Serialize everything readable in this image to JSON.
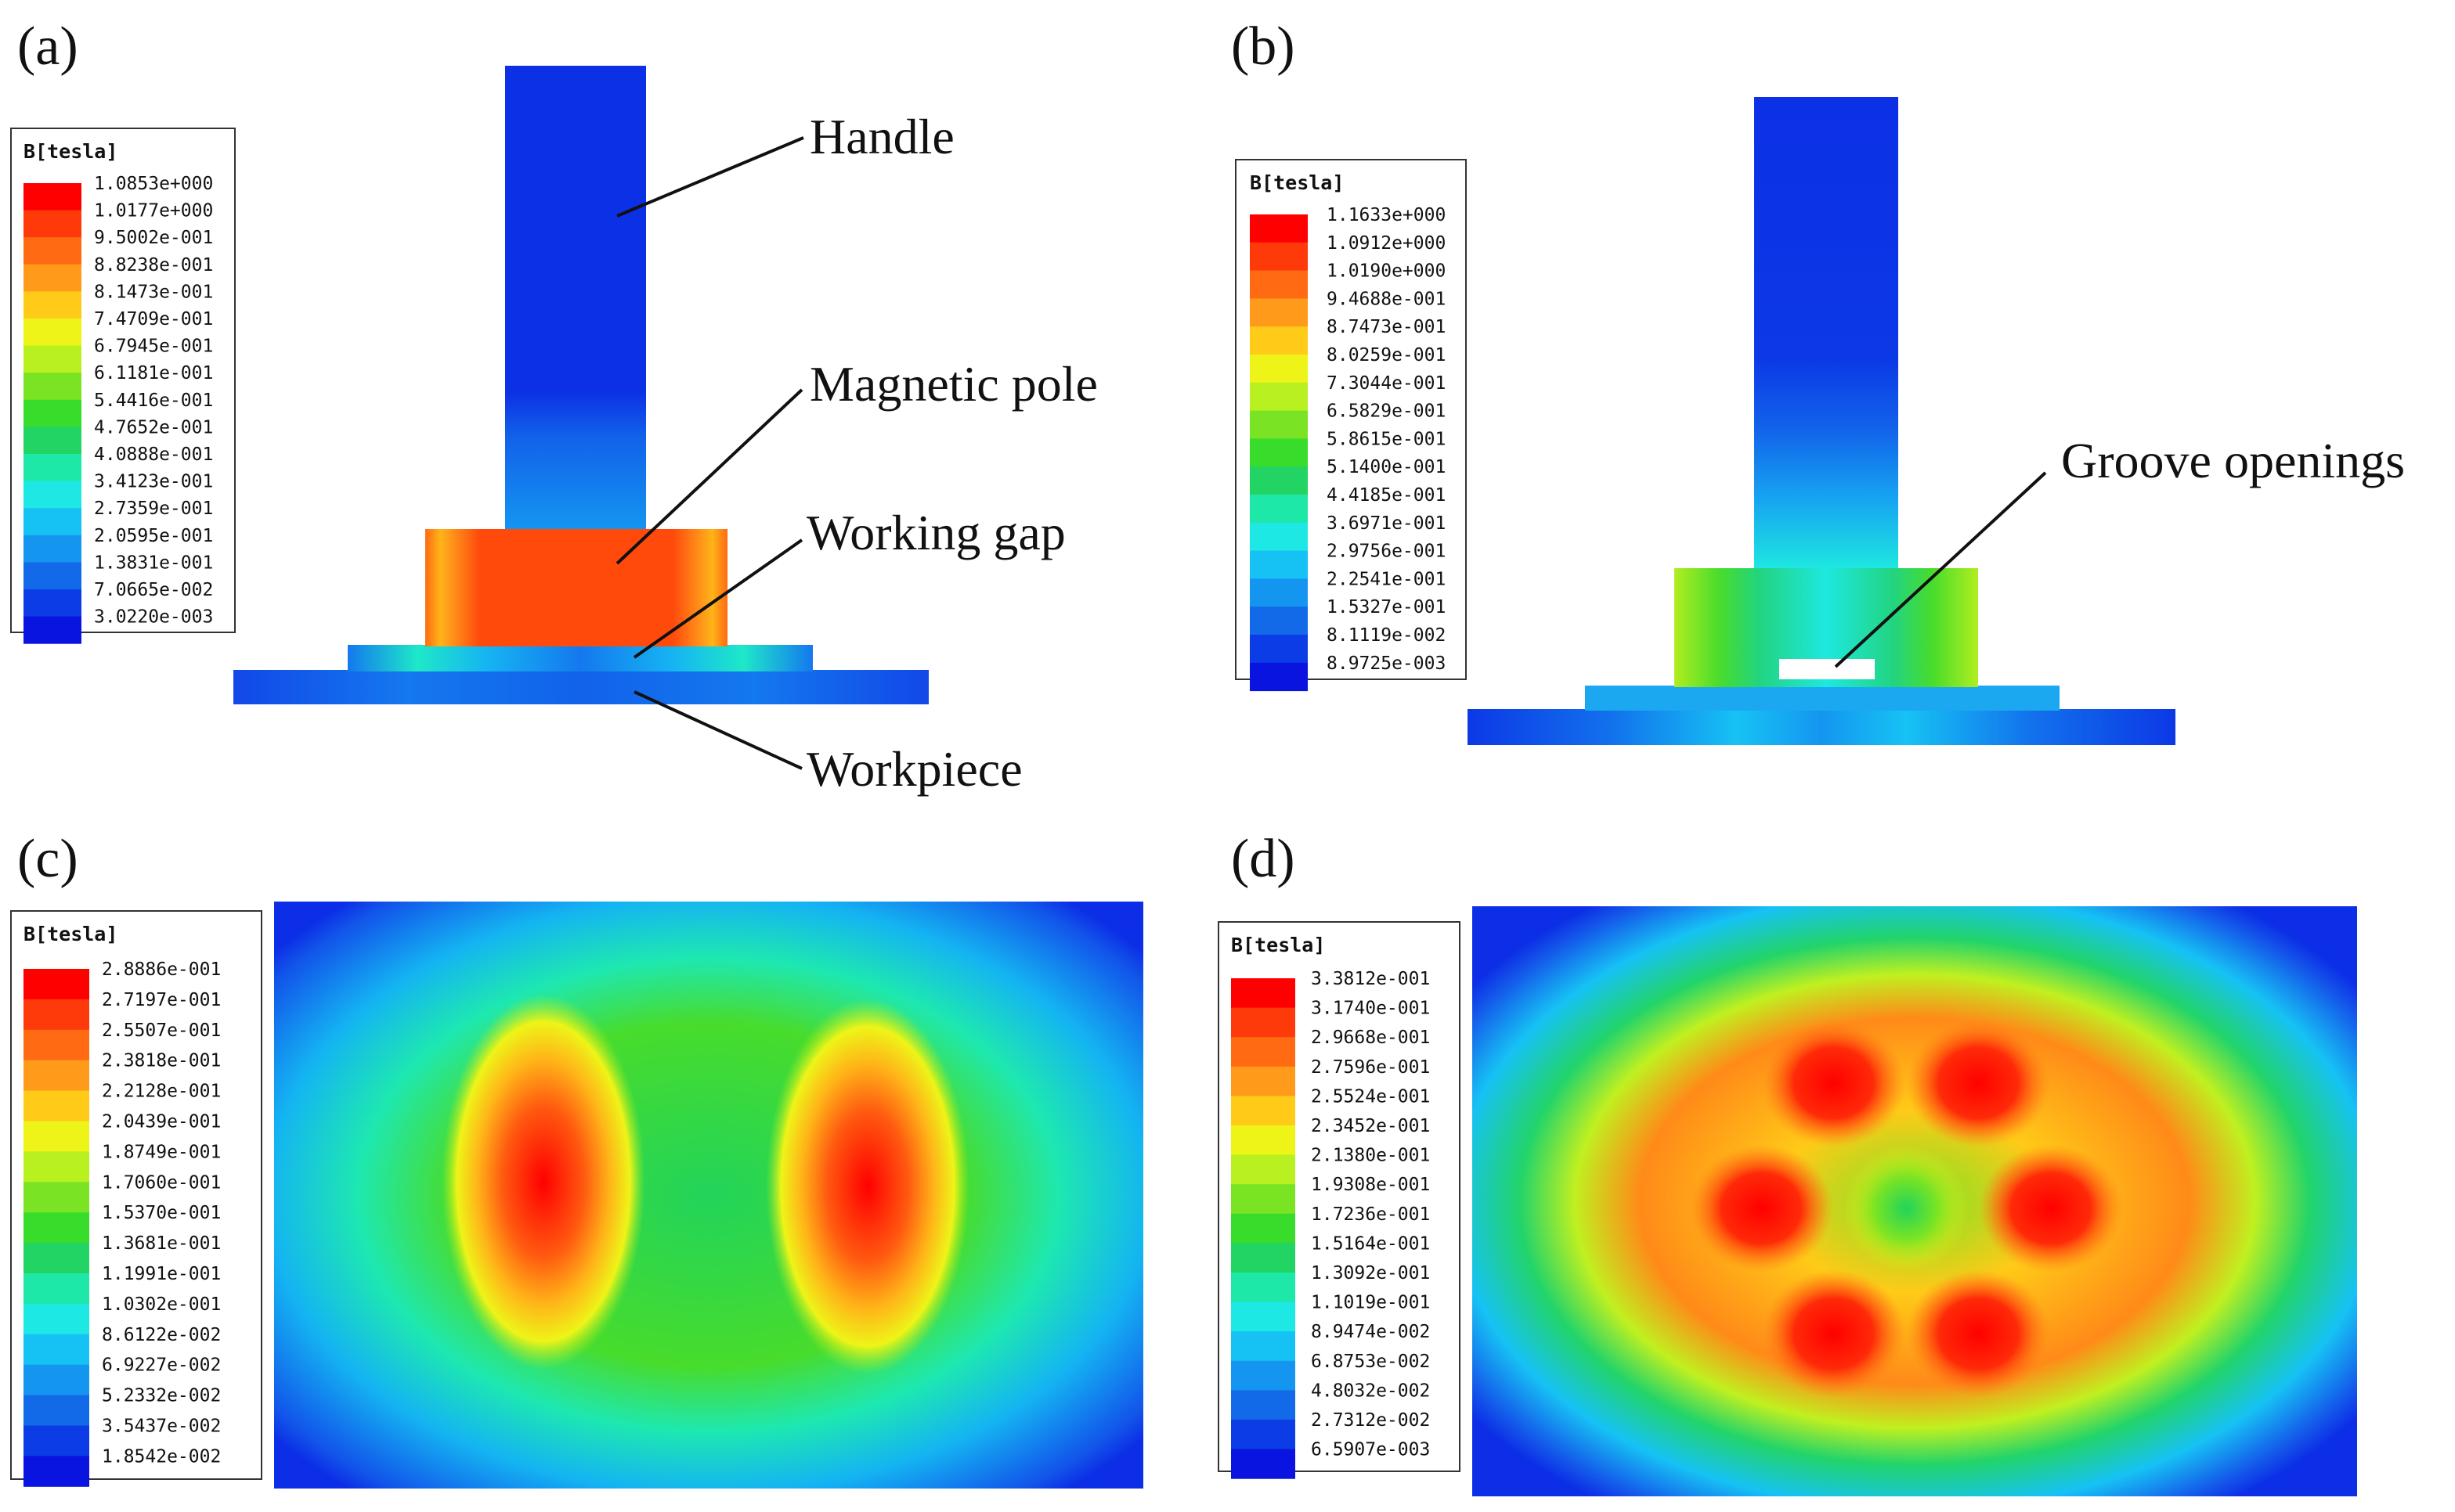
{
  "panels": [
    {
      "id": "a",
      "label": "(a)"
    },
    {
      "id": "b",
      "label": "(b)"
    },
    {
      "id": "c",
      "label": "(c)"
    },
    {
      "id": "d",
      "label": "(d)"
    }
  ],
  "callouts": {
    "handle": "Handle",
    "magnetic_pole": "Magnetic pole",
    "working_gap": "Working gap",
    "workpiece": "Workpiece",
    "groove_openings": "Groove openings"
  },
  "legends": {
    "unit_title": "B[tesla]",
    "a": [
      "1.0853e+000",
      "1.0177e+000",
      "9.5002e-001",
      "8.8238e-001",
      "8.1473e-001",
      "7.4709e-001",
      "6.7945e-001",
      "6.1181e-001",
      "5.4416e-001",
      "4.7652e-001",
      "4.0888e-001",
      "3.4123e-001",
      "2.7359e-001",
      "2.0595e-001",
      "1.3831e-001",
      "7.0665e-002",
      "3.0220e-003"
    ],
    "b": [
      "1.1633e+000",
      "1.0912e+000",
      "1.0190e+000",
      "9.4688e-001",
      "8.7473e-001",
      "8.0259e-001",
      "7.3044e-001",
      "6.5829e-001",
      "5.8615e-001",
      "5.1400e-001",
      "4.4185e-001",
      "3.6971e-001",
      "2.9756e-001",
      "2.2541e-001",
      "1.5327e-001",
      "8.1119e-002",
      "8.9725e-003"
    ],
    "c": [
      "2.8886e-001",
      "2.7197e-001",
      "2.5507e-001",
      "2.3818e-001",
      "2.2128e-001",
      "2.0439e-001",
      "1.8749e-001",
      "1.7060e-001",
      "1.5370e-001",
      "1.3681e-001",
      "1.1991e-001",
      "1.0302e-001",
      "8.6122e-002",
      "6.9227e-002",
      "5.2332e-002",
      "3.5437e-002",
      "1.8542e-002"
    ],
    "d": [
      "3.3812e-001",
      "3.1740e-001",
      "2.9668e-001",
      "2.7596e-001",
      "2.5524e-001",
      "2.3452e-001",
      "2.1380e-001",
      "1.9308e-001",
      "1.7236e-001",
      "1.5164e-001",
      "1.3092e-001",
      "1.1019e-001",
      "8.9474e-002",
      "6.8753e-002",
      "4.8032e-002",
      "2.7312e-002",
      "6.5907e-003"
    ]
  },
  "colors": {
    "scale": [
      "#ff0000",
      "#ff3a0a",
      "#ff6a12",
      "#ff9a1a",
      "#ffca18",
      "#eef418",
      "#b8f020",
      "#7ae424",
      "#38dc2a",
      "#22d464",
      "#1ee8a8",
      "#1ee8e4",
      "#16c2f4",
      "#1496f0",
      "#126ae8",
      "#0c3ce6",
      "#0a14e0"
    ],
    "field_low": "#0c2ee6"
  }
}
